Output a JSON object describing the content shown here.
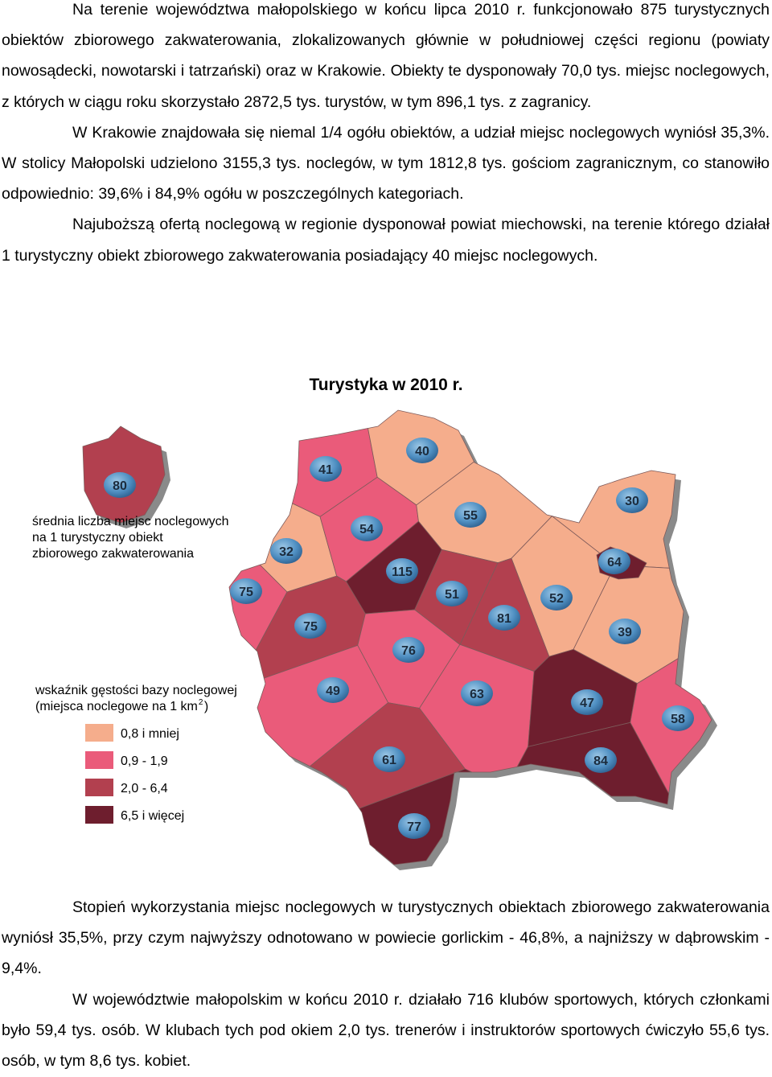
{
  "paragraphs_top": [
    "Na terenie województwa małopolskiego w końcu lipca 2010 r. funkcjonowało 875 turystycznych obiektów zbiorowego zakwaterowania, zlokalizowanych głównie w południowej części regionu (powiaty nowosądecki, nowotarski i tatrzański) oraz w Krakowie. Obiekty te dysponowały 70,0 tys. miejsc noclegowych, z których w ciągu roku skorzystało 2872,5 tys. turystów, w tym 896,1 tys. z zagranicy.",
    "W Krakowie znajdowała się niemal 1/4 ogółu obiektów, a udział miejsc noclegowych wyniósł 35,3%. W stolicy Małopolski udzielono 3155,3 tys. noclegów, w tym 1812,8 tys. gościom zagranicznym, co stanowiło odpowiednio: 39,6% i 84,9% ogółu w poszczególnych kategoriach.",
    "Najuboższą ofertą noclegową w regionie dysponował powiat miechowski, na terenie którego działał 1 turystyczny obiekt zbiorowego zakwaterowania posiadający 40 miejsc noclegowych."
  ],
  "map": {
    "title": "Turystyka w 2010 r.",
    "size_note": [
      "średnia liczba miejsc noclegowych",
      "na 1 turystyczny obiekt",
      "zbiorowego zakwaterowania"
    ],
    "density_note": {
      "lines": [
        "wskaźnik gęstości bazy noclegowej",
        "(miejsca noclegowe na 1 km"
      ],
      "sup": "2",
      "close": ")"
    },
    "classes": [
      {
        "label": "0,8 i mniej",
        "color": "#f5ad8c"
      },
      {
        "label": "0,9 - 1,9",
        "color": "#ea5b7a"
      },
      {
        "label": "2,0 - 6,4",
        "color": "#b2404f"
      },
      {
        "label": "6,5 i więcej",
        "color": "#6e1e2e"
      }
    ],
    "regions": [
      {
        "value": 80,
        "class": 2
      },
      {
        "value": 41,
        "class": 1
      },
      {
        "value": 40,
        "class": 0
      },
      {
        "value": 32,
        "class": 0
      },
      {
        "value": 54,
        "class": 1
      },
      {
        "value": 55,
        "class": 0
      },
      {
        "value": 30,
        "class": 0
      },
      {
        "value": 115,
        "class": 3
      },
      {
        "value": 64,
        "class": 3
      },
      {
        "value": 75,
        "class": 1
      },
      {
        "value": 51,
        "class": 2
      },
      {
        "value": 52,
        "class": 0
      },
      {
        "value": 75,
        "class": 2
      },
      {
        "value": 81,
        "class": 2
      },
      {
        "value": 39,
        "class": 0
      },
      {
        "value": 76,
        "class": 1
      },
      {
        "value": 49,
        "class": 1
      },
      {
        "value": 63,
        "class": 1
      },
      {
        "value": 47,
        "class": 3
      },
      {
        "value": 58,
        "class": 1
      },
      {
        "value": 61,
        "class": 2
      },
      {
        "value": 84,
        "class": 3
      },
      {
        "value": 77,
        "class": 3
      }
    ]
  },
  "paragraphs_bottom": [
    "Stopień wykorzystania miejsc noclegowych w turystycznych obiektach zbiorowego zakwaterowania wyniósł 35,5%, przy czym najwyższy odnotowano w powiecie gorlickim - 46,8%, a najniższy w dąbrowskim - 9,4%.",
    "W województwie małopolskim w końcu 2010 r. działało 716 klubów sportowych, których członkami było 59,4 tys. osób. W klubach tych pod okiem 2,0 tys. trenerów i instruktorów sportowych ćwiczyło 55,6 tys. osób, w tym 8,6 tys. kobiet."
  ]
}
